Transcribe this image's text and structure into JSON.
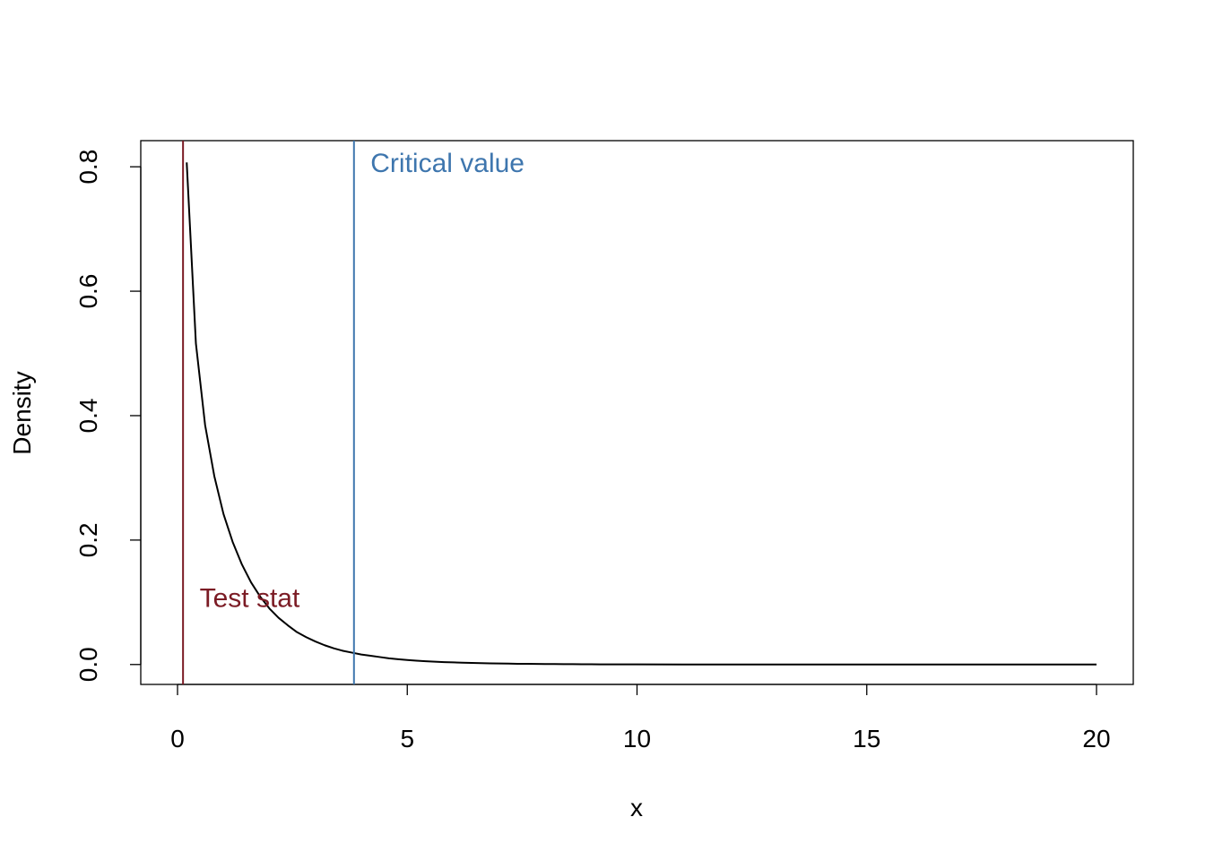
{
  "chart_data": {
    "type": "line",
    "title": "",
    "xlabel": "x",
    "ylabel": "Density",
    "xlim": [
      -0.8,
      20.8
    ],
    "ylim": [
      -0.032,
      0.842
    ],
    "x_ticks": [
      0,
      5,
      10,
      15,
      20
    ],
    "x_tick_labels": [
      "0",
      "5",
      "10",
      "15",
      "20"
    ],
    "y_ticks": [
      0.0,
      0.2,
      0.4,
      0.6,
      0.8
    ],
    "y_tick_labels": [
      "0.0",
      "0.2",
      "0.4",
      "0.6",
      "0.8"
    ],
    "grid": false,
    "series": [
      {
        "color": "#000000",
        "x": [
          0.2,
          0.4,
          0.6,
          0.8,
          1.0,
          1.2,
          1.4,
          1.6,
          1.8,
          2.0,
          2.2,
          2.4,
          2.6,
          2.8,
          3.0,
          3.2,
          3.4,
          3.6,
          3.8,
          4.0,
          4.2,
          4.4,
          4.6,
          4.8,
          5.0,
          5.2,
          5.4,
          5.6,
          5.8,
          6.0,
          6.2,
          6.4,
          6.6,
          6.8,
          7.0,
          7.2,
          7.4,
          7.6,
          7.8,
          8.0,
          8.2,
          8.4,
          8.6,
          8.8,
          9.0,
          9.2,
          9.4,
          9.6,
          9.8,
          10.0,
          11.0,
          12.0,
          13.0,
          14.0,
          15.0,
          16.0,
          17.0,
          18.0,
          19.0,
          20.0
        ],
        "y": [
          0.807,
          0.516,
          0.385,
          0.303,
          0.242,
          0.197,
          0.161,
          0.132,
          0.109,
          0.09,
          0.075,
          0.063,
          0.052,
          0.044,
          0.037,
          0.031,
          0.026,
          0.022,
          0.019,
          0.016,
          0.014,
          0.012,
          0.01,
          0.0085,
          0.0073,
          0.0062,
          0.0053,
          0.0046,
          0.0039,
          0.0034,
          0.0029,
          0.0025,
          0.0022,
          0.0019,
          0.0016,
          0.0014,
          0.0012,
          0.0011,
          0.0009,
          0.0008,
          0.0007,
          0.0006,
          0.0005,
          0.0004,
          0.0004,
          0.0003,
          0.0003,
          0.0002,
          0.0002,
          0.0002,
          0.0001,
          0.0001,
          0.0,
          0.0,
          0.0,
          0.0,
          0.0,
          0.0,
          0.0,
          0.0
        ]
      }
    ],
    "vlines": [
      {
        "x": 0.12,
        "color": "#7b1b24"
      },
      {
        "x": 3.84,
        "color": "#3e76ae"
      }
    ],
    "annotations": [
      {
        "text": "Test stat",
        "x": 0.48,
        "y": 0.104,
        "color": "#7b1b24"
      },
      {
        "text": "Critical value",
        "x": 4.2,
        "y": 0.803,
        "color": "#3e76ae"
      }
    ]
  }
}
